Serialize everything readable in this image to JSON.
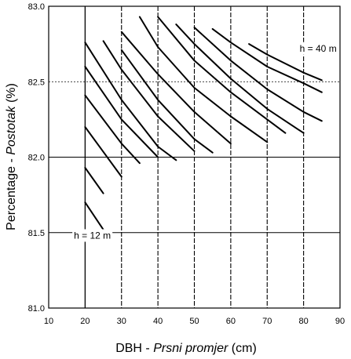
{
  "chart_data": {
    "type": "line",
    "xlabel_main": "DBH - ",
    "xlabel_italic": "Prsni promjer",
    "xlabel_unit": " (cm)",
    "ylabel_main": "Percentage - ",
    "ylabel_italic": "Postotak",
    "ylabel_unit": " (%)",
    "xlim": [
      10,
      90
    ],
    "ylim": [
      81.0,
      83.0
    ],
    "x_ticks": [
      "10",
      "20",
      "30",
      "40",
      "50",
      "60",
      "70",
      "80",
      "90"
    ],
    "y_ticks": [
      "81.0",
      "81.5",
      "82.0",
      "82.5",
      "83.0"
    ],
    "grid": true,
    "annotations": [
      {
        "text": "h = 40 m",
        "x": 84,
        "y": 82.7
      },
      {
        "text": "h = 12 m",
        "x": 22,
        "y": 81.46
      }
    ],
    "series": [
      {
        "x": [
          20,
          25
        ],
        "y": [
          81.7,
          81.52
        ]
      },
      {
        "x": [
          20,
          25
        ],
        "y": [
          81.93,
          81.76
        ]
      },
      {
        "x": [
          20,
          30
        ],
        "y": [
          82.2,
          81.87
        ]
      },
      {
        "x": [
          20,
          30,
          35
        ],
        "y": [
          82.41,
          82.09,
          81.96
        ]
      },
      {
        "x": [
          20,
          30,
          40
        ],
        "y": [
          82.6,
          82.25,
          82.0
        ]
      },
      {
        "x": [
          20,
          30,
          40,
          45
        ],
        "y": [
          82.76,
          82.38,
          82.07,
          81.98
        ]
      },
      {
        "x": [
          25,
          30,
          40,
          50
        ],
        "y": [
          82.77,
          82.58,
          82.27,
          82.04
        ]
      },
      {
        "x": [
          30,
          40,
          50,
          55
        ],
        "y": [
          82.71,
          82.38,
          82.12,
          82.03
        ]
      },
      {
        "x": [
          30,
          40,
          50,
          60
        ],
        "y": [
          82.83,
          82.55,
          82.3,
          82.09
        ]
      },
      {
        "x": [
          35,
          40,
          50,
          60,
          70
        ],
        "y": [
          82.93,
          82.73,
          82.46,
          82.27,
          82.1
        ]
      },
      {
        "x": [
          40,
          50,
          60,
          70,
          75
        ],
        "y": [
          82.93,
          82.64,
          82.43,
          82.25,
          82.16
        ]
      },
      {
        "x": [
          45,
          50,
          60,
          70,
          80
        ],
        "y": [
          82.88,
          82.75,
          82.52,
          82.32,
          82.16
        ]
      },
      {
        "x": [
          50,
          60,
          70,
          80,
          85
        ],
        "y": [
          82.86,
          82.64,
          82.45,
          82.3,
          82.24
        ]
      },
      {
        "x": [
          55,
          60,
          70,
          80,
          85
        ],
        "y": [
          82.85,
          82.76,
          82.6,
          82.49,
          82.43
        ]
      },
      {
        "x": [
          65,
          70,
          80,
          85
        ],
        "y": [
          82.75,
          82.68,
          82.56,
          82.51
        ]
      }
    ]
  }
}
